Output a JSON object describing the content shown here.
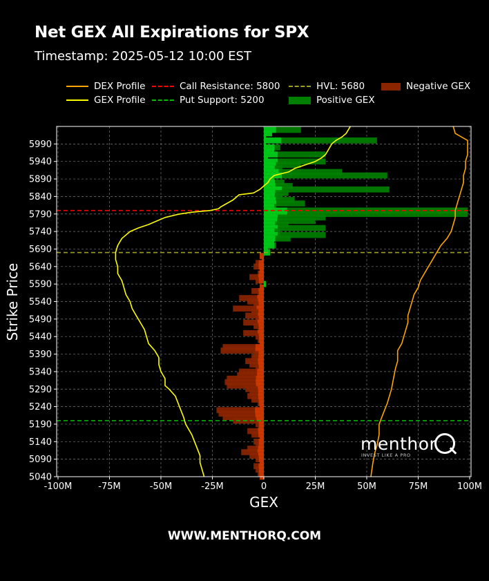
{
  "header": {
    "title": "Net GEX All Expirations for SPX",
    "subtitle": "Timestamp: 2025-05-12 10:00 EST"
  },
  "legend": {
    "items": [
      {
        "label": "DEX Profile",
        "color": "#ffa500",
        "kind": "line"
      },
      {
        "label": "GEX Profile",
        "color": "#ffff00",
        "kind": "line"
      },
      {
        "label": "Call Resistance: 5800",
        "color": "#ff0000",
        "kind": "dashed"
      },
      {
        "label": "Put Support: 5200",
        "color": "#00c000",
        "kind": "dashed"
      },
      {
        "label": "HVL: 5680",
        "color": "#a0a020",
        "kind": "dashed"
      },
      {
        "label": "Positive GEX",
        "color": "#008000",
        "kind": "box"
      },
      {
        "label": "Negative GEX",
        "color": "#8b2500",
        "kind": "box"
      }
    ]
  },
  "watermark": {
    "word": "menthor",
    "letter": "Q",
    "tagline": "INVEST LIKE A PRO"
  },
  "footer": {
    "text": "WWW.MENTHORQ.COM"
  },
  "chart_data": {
    "type": "bar",
    "orientation": "horizontal",
    "xlabel": "GEX",
    "ylabel": "Strike Price",
    "xlim": [
      -100,
      100
    ],
    "x_unit": "M",
    "ylim": [
      5040,
      6040
    ],
    "x_ticks": [
      "-100M",
      "-75M",
      "-50M",
      "-25M",
      "0",
      "25M",
      "50M",
      "75M",
      "100M"
    ],
    "x_tick_values": [
      -100,
      -75,
      -50,
      -25,
      0,
      25,
      50,
      75,
      100
    ],
    "y_ticks": [
      5040,
      5090,
      5140,
      5190,
      5240,
      5290,
      5340,
      5390,
      5440,
      5490,
      5540,
      5590,
      5640,
      5690,
      5740,
      5790,
      5840,
      5890,
      5940,
      5990
    ],
    "grid": true,
    "reference_lines": [
      {
        "name": "Call Resistance",
        "strike": 5800,
        "color": "#ff0000"
      },
      {
        "name": "Put Support",
        "strike": 5200,
        "color": "#00c000"
      },
      {
        "name": "HVL",
        "strike": 5680,
        "color": "#a0a020"
      }
    ],
    "gex_bars": [
      [
        6030,
        18
      ],
      [
        6020,
        4
      ],
      [
        6010,
        1
      ],
      [
        6000,
        55
      ],
      [
        5990,
        1
      ],
      [
        5980,
        8
      ],
      [
        5970,
        5
      ],
      [
        5960,
        30
      ],
      [
        5950,
        2
      ],
      [
        5940,
        30
      ],
      [
        5930,
        18
      ],
      [
        5920,
        9
      ],
      [
        5910,
        38
      ],
      [
        5900,
        60
      ],
      [
        5890,
        5
      ],
      [
        5880,
        10
      ],
      [
        5870,
        14
      ],
      [
        5860,
        61
      ],
      [
        5850,
        12
      ],
      [
        5840,
        9
      ],
      [
        5830,
        15
      ],
      [
        5820,
        20
      ],
      [
        5810,
        6
      ],
      [
        5800,
        99
      ],
      [
        5790,
        99
      ],
      [
        5780,
        30
      ],
      [
        5770,
        25
      ],
      [
        5760,
        12
      ],
      [
        5750,
        30
      ],
      [
        5740,
        8
      ],
      [
        5730,
        30
      ],
      [
        5720,
        13
      ],
      [
        5710,
        5
      ],
      [
        5700,
        6
      ],
      [
        5690,
        2
      ],
      [
        5680,
        3
      ],
      [
        5670,
        -2
      ],
      [
        5660,
        -1
      ],
      [
        5650,
        -4
      ],
      [
        5640,
        -5
      ],
      [
        5630,
        -2
      ],
      [
        5620,
        -3
      ],
      [
        5610,
        -7
      ],
      [
        5600,
        -4
      ],
      [
        5590,
        1
      ],
      [
        5580,
        -2
      ],
      [
        5570,
        -6
      ],
      [
        5560,
        -3
      ],
      [
        5550,
        -12
      ],
      [
        5540,
        -8
      ],
      [
        5530,
        -5
      ],
      [
        5520,
        -15
      ],
      [
        5510,
        -6
      ],
      [
        5500,
        -9
      ],
      [
        5490,
        -4
      ],
      [
        5480,
        -10
      ],
      [
        5470,
        -5
      ],
      [
        5460,
        -3
      ],
      [
        5450,
        -10
      ],
      [
        5440,
        -4
      ],
      [
        5430,
        -3
      ],
      [
        5420,
        -2
      ],
      [
        5410,
        -20
      ],
      [
        5400,
        -21
      ],
      [
        5390,
        -5
      ],
      [
        5380,
        -6
      ],
      [
        5370,
        -9
      ],
      [
        5360,
        -7
      ],
      [
        5350,
        -4
      ],
      [
        5340,
        -12
      ],
      [
        5330,
        -13
      ],
      [
        5320,
        -18
      ],
      [
        5310,
        -19
      ],
      [
        5300,
        -18
      ],
      [
        5290,
        -9
      ],
      [
        5280,
        -7
      ],
      [
        5270,
        -8
      ],
      [
        5260,
        -6
      ],
      [
        5250,
        -3
      ],
      [
        5240,
        -2
      ],
      [
        5230,
        -23
      ],
      [
        5220,
        -22
      ],
      [
        5210,
        -20
      ],
      [
        5200,
        -15
      ],
      [
        5190,
        -4
      ],
      [
        5180,
        -3
      ],
      [
        5170,
        -8
      ],
      [
        5160,
        -6
      ],
      [
        5150,
        -2
      ],
      [
        5140,
        -5
      ],
      [
        5130,
        -4
      ],
      [
        5120,
        -8
      ],
      [
        5110,
        -11
      ],
      [
        5100,
        -7
      ],
      [
        5090,
        -4
      ],
      [
        5080,
        -2
      ],
      [
        5070,
        -5
      ],
      [
        5060,
        -4
      ],
      [
        5050,
        -3
      ],
      [
        5040,
        -2
      ]
    ],
    "series": [
      {
        "name": "GEX Profile",
        "color": "#ffff00",
        "points": [
          [
            5040,
            -29
          ],
          [
            5080,
            -31
          ],
          [
            5100,
            -31
          ],
          [
            5130,
            -33
          ],
          [
            5160,
            -35
          ],
          [
            5190,
            -38
          ],
          [
            5210,
            -39
          ],
          [
            5240,
            -41
          ],
          [
            5270,
            -43
          ],
          [
            5290,
            -46
          ],
          [
            5300,
            -48
          ],
          [
            5320,
            -48
          ],
          [
            5340,
            -50
          ],
          [
            5360,
            -51
          ],
          [
            5380,
            -51
          ],
          [
            5400,
            -53
          ],
          [
            5420,
            -56
          ],
          [
            5440,
            -57
          ],
          [
            5460,
            -58
          ],
          [
            5480,
            -60
          ],
          [
            5500,
            -62
          ],
          [
            5520,
            -64
          ],
          [
            5540,
            -65
          ],
          [
            5560,
            -67
          ],
          [
            5580,
            -68
          ],
          [
            5600,
            -69
          ],
          [
            5620,
            -71
          ],
          [
            5640,
            -71
          ],
          [
            5660,
            -72
          ],
          [
            5680,
            -72
          ],
          [
            5700,
            -71
          ],
          [
            5720,
            -69
          ],
          [
            5740,
            -65
          ],
          [
            5750,
            -61
          ],
          [
            5760,
            -56
          ],
          [
            5770,
            -52
          ],
          [
            5780,
            -48
          ],
          [
            5790,
            -41
          ],
          [
            5795,
            -35
          ],
          [
            5800,
            -26
          ],
          [
            5805,
            -22
          ],
          [
            5810,
            -21
          ],
          [
            5820,
            -18
          ],
          [
            5830,
            -15
          ],
          [
            5840,
            -13
          ],
          [
            5845,
            -12
          ],
          [
            5850,
            -5
          ],
          [
            5860,
            -2
          ],
          [
            5870,
            0
          ],
          [
            5880,
            2
          ],
          [
            5890,
            3
          ],
          [
            5900,
            5
          ],
          [
            5910,
            12
          ],
          [
            5920,
            15
          ],
          [
            5930,
            20
          ],
          [
            5940,
            25
          ],
          [
            5950,
            28
          ],
          [
            5960,
            30
          ],
          [
            5970,
            31
          ],
          [
            5980,
            32
          ],
          [
            5990,
            33
          ],
          [
            6000,
            35
          ],
          [
            6010,
            38
          ],
          [
            6020,
            40
          ],
          [
            6040,
            42
          ]
        ]
      },
      {
        "name": "DEX Profile",
        "color": "#ffa500",
        "points": [
          [
            5040,
            52
          ],
          [
            5080,
            53
          ],
          [
            5110,
            54
          ],
          [
            5130,
            55
          ],
          [
            5160,
            56
          ],
          [
            5190,
            56
          ],
          [
            5220,
            58
          ],
          [
            5250,
            60
          ],
          [
            5270,
            61
          ],
          [
            5290,
            62
          ],
          [
            5320,
            63
          ],
          [
            5350,
            64
          ],
          [
            5370,
            65
          ],
          [
            5400,
            65
          ],
          [
            5420,
            67
          ],
          [
            5440,
            68
          ],
          [
            5460,
            69
          ],
          [
            5480,
            70
          ],
          [
            5500,
            70
          ],
          [
            5520,
            71
          ],
          [
            5540,
            72
          ],
          [
            5560,
            73
          ],
          [
            5580,
            75
          ],
          [
            5600,
            76
          ],
          [
            5620,
            78
          ],
          [
            5640,
            80
          ],
          [
            5660,
            82
          ],
          [
            5680,
            84
          ],
          [
            5700,
            86
          ],
          [
            5720,
            89
          ],
          [
            5740,
            91
          ],
          [
            5760,
            92
          ],
          [
            5780,
            93
          ],
          [
            5800,
            93
          ],
          [
            5820,
            94
          ],
          [
            5840,
            95
          ],
          [
            5860,
            96
          ],
          [
            5880,
            97
          ],
          [
            5900,
            97
          ],
          [
            5920,
            98
          ],
          [
            5940,
            98
          ],
          [
            5960,
            99
          ],
          [
            5980,
            99
          ],
          [
            5990,
            99
          ],
          [
            6000,
            99
          ],
          [
            6010,
            96
          ],
          [
            6020,
            93
          ],
          [
            6040,
            92
          ]
        ]
      }
    ]
  }
}
